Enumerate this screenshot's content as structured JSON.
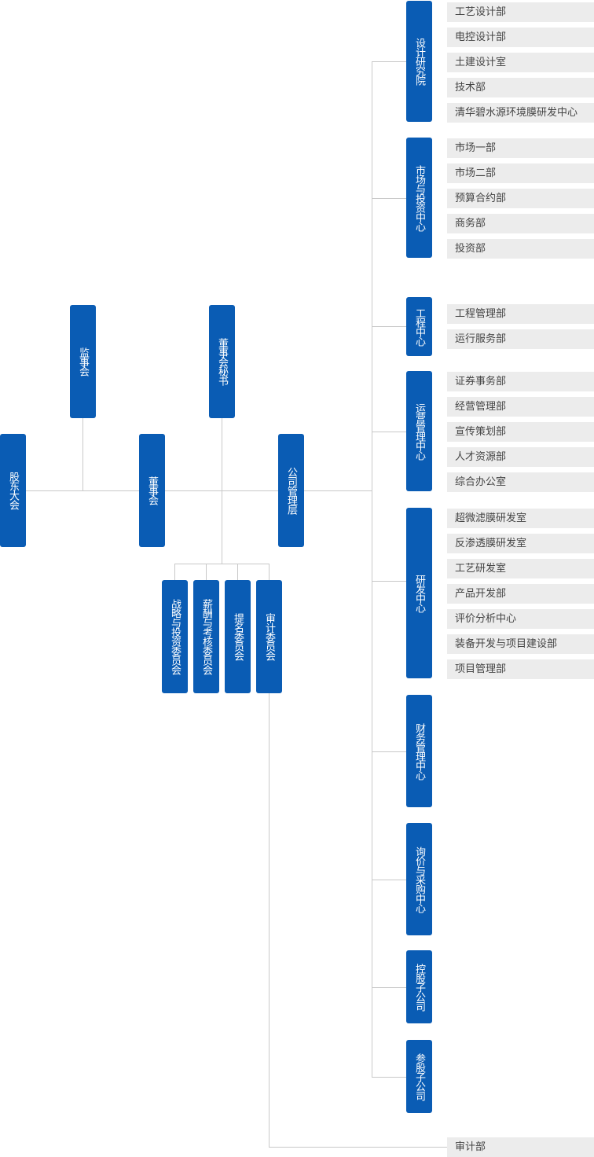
{
  "colors": {
    "node": "#0a5cb4",
    "sub_bg": "#ececec",
    "line": "#c8c8c8"
  },
  "top": {
    "shareholders": "股东大会",
    "supervisors": "监事会",
    "board": "董事会",
    "board_secretary": "董事会秘书",
    "management": "公司管理层"
  },
  "committees": [
    "战略与投资委员会",
    "薪酬与考核委员会",
    "提名委员会",
    "审计委员会"
  ],
  "audit_dept": "审计部",
  "departments": [
    {
      "name": "设计研究院",
      "subs": [
        "工艺设计部",
        "电控设计部",
        "土建设计室",
        "技术部",
        "清华碧水源环境膜研发中心"
      ]
    },
    {
      "name": "市场与投资中心",
      "subs": [
        "市场一部",
        "市场二部",
        "预算合约部",
        "商务部",
        "投资部"
      ]
    },
    {
      "name": "工程中心",
      "subs": [
        "工程管理部",
        "运行服务部"
      ]
    },
    {
      "name": "运营管理中心",
      "subs": [
        "证券事务部",
        "经营管理部",
        "宣传策划部",
        "人才资源部",
        "综合办公室"
      ]
    },
    {
      "name": "研发中心",
      "subs": [
        "超微滤膜研发室",
        "反渗透膜研发室",
        "工艺研发室",
        "产品开发部",
        "评价分析中心",
        "装备开发与项目建设部",
        "项目管理部"
      ]
    },
    {
      "name": "财务管理中心",
      "subs": []
    },
    {
      "name": "询价与采购中心",
      "subs": []
    },
    {
      "name": "控股子公司",
      "subs": []
    },
    {
      "name": "参股子公司",
      "subs": []
    }
  ]
}
